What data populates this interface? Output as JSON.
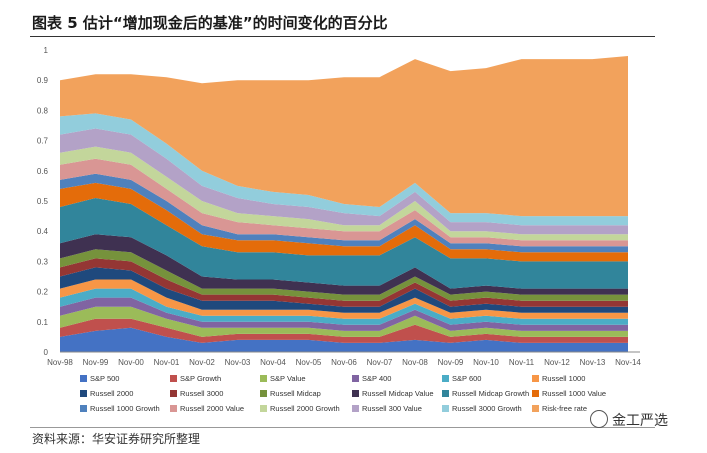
{
  "title": "图表 5 估计“增加现金后的基准”的时间变化的百分比",
  "source": "资料来源：华安证券研究所整理",
  "watermark": "金工严选",
  "chart_data": {
    "type": "area",
    "stacked": true,
    "xlabel": "",
    "ylabel": "",
    "ylim": [
      0,
      1
    ],
    "yticks": [
      "0",
      "0.1",
      "0.2",
      "0.3",
      "0.4",
      "0.5",
      "0.6",
      "0.7",
      "0.8",
      "0.9",
      "1"
    ],
    "x": [
      "Nov-98",
      "Nov-99",
      "Nov-00",
      "Nov-01",
      "Nov-02",
      "Nov-03",
      "Nov-04",
      "Nov-05",
      "Nov-06",
      "Nov-07",
      "Nov-08",
      "Nov-09",
      "Nov-10",
      "Nov-11",
      "Nov-12",
      "Nov-13",
      "Nov-14"
    ],
    "legend_position": "bottom",
    "series": [
      {
        "name": "S&P 500",
        "color": "#4472C4",
        "values": [
          0.05,
          0.07,
          0.08,
          0.05,
          0.03,
          0.04,
          0.04,
          0.04,
          0.03,
          0.03,
          0.04,
          0.03,
          0.04,
          0.03,
          0.03,
          0.03,
          0.03
        ]
      },
      {
        "name": "S&P Growth",
        "color": "#C0504D",
        "values": [
          0.03,
          0.04,
          0.03,
          0.03,
          0.02,
          0.02,
          0.02,
          0.02,
          0.02,
          0.02,
          0.05,
          0.02,
          0.02,
          0.02,
          0.02,
          0.02,
          0.02
        ]
      },
      {
        "name": "S&P Value",
        "color": "#9BBB59",
        "values": [
          0.04,
          0.04,
          0.04,
          0.03,
          0.03,
          0.02,
          0.02,
          0.02,
          0.02,
          0.02,
          0.03,
          0.02,
          0.02,
          0.02,
          0.02,
          0.02,
          0.02
        ]
      },
      {
        "name": "S&P 400",
        "color": "#8064A2",
        "values": [
          0.03,
          0.03,
          0.03,
          0.02,
          0.02,
          0.02,
          0.02,
          0.02,
          0.02,
          0.02,
          0.02,
          0.02,
          0.02,
          0.02,
          0.02,
          0.02,
          0.02
        ]
      },
      {
        "name": "S&P 600",
        "color": "#4BACC6",
        "values": [
          0.03,
          0.03,
          0.03,
          0.02,
          0.02,
          0.02,
          0.02,
          0.02,
          0.02,
          0.02,
          0.02,
          0.02,
          0.02,
          0.02,
          0.02,
          0.02,
          0.02
        ]
      },
      {
        "name": "Russell 1000",
        "color": "#F79646",
        "values": [
          0.03,
          0.03,
          0.03,
          0.03,
          0.02,
          0.02,
          0.02,
          0.02,
          0.02,
          0.02,
          0.02,
          0.02,
          0.02,
          0.02,
          0.02,
          0.02,
          0.02
        ]
      },
      {
        "name": "Russell 2000",
        "color": "#1F497D",
        "values": [
          0.04,
          0.04,
          0.03,
          0.03,
          0.03,
          0.03,
          0.03,
          0.02,
          0.02,
          0.02,
          0.03,
          0.02,
          0.02,
          0.02,
          0.02,
          0.02,
          0.02
        ]
      },
      {
        "name": "Russell 3000",
        "color": "#943634",
        "values": [
          0.03,
          0.03,
          0.03,
          0.03,
          0.02,
          0.02,
          0.02,
          0.02,
          0.02,
          0.02,
          0.02,
          0.02,
          0.02,
          0.02,
          0.02,
          0.02,
          0.02
        ]
      },
      {
        "name": "Russell Midcap",
        "color": "#76923C",
        "values": [
          0.03,
          0.03,
          0.03,
          0.03,
          0.02,
          0.02,
          0.02,
          0.02,
          0.02,
          0.02,
          0.02,
          0.02,
          0.02,
          0.02,
          0.02,
          0.02,
          0.02
        ]
      },
      {
        "name": "Russell Midcap Value",
        "color": "#3F3151",
        "values": [
          0.05,
          0.05,
          0.05,
          0.05,
          0.04,
          0.03,
          0.03,
          0.03,
          0.03,
          0.03,
          0.03,
          0.02,
          0.02,
          0.02,
          0.02,
          0.02,
          0.02
        ]
      },
      {
        "name": "Russell Midcap Growth",
        "color": "#31859B",
        "values": [
          0.12,
          0.12,
          0.11,
          0.1,
          0.1,
          0.09,
          0.09,
          0.09,
          0.1,
          0.1,
          0.1,
          0.1,
          0.09,
          0.09,
          0.09,
          0.09,
          0.09
        ]
      },
      {
        "name": "Russell 1000 Value",
        "color": "#E46C0A",
        "values": [
          0.06,
          0.05,
          0.05,
          0.05,
          0.04,
          0.04,
          0.04,
          0.04,
          0.03,
          0.03,
          0.04,
          0.03,
          0.03,
          0.03,
          0.03,
          0.03,
          0.03
        ]
      },
      {
        "name": "Russell 1000 Growth",
        "color": "#4F81BD",
        "values": [
          0.03,
          0.03,
          0.03,
          0.03,
          0.03,
          0.02,
          0.02,
          0.02,
          0.02,
          0.02,
          0.02,
          0.02,
          0.02,
          0.02,
          0.02,
          0.02,
          0.02
        ]
      },
      {
        "name": "Russell 2000 Value",
        "color": "#D99694",
        "values": [
          0.05,
          0.05,
          0.05,
          0.04,
          0.04,
          0.04,
          0.03,
          0.03,
          0.03,
          0.03,
          0.03,
          0.02,
          0.02,
          0.02,
          0.02,
          0.02,
          0.02
        ]
      },
      {
        "name": "Russell 2000 Growth",
        "color": "#C3D69B",
        "values": [
          0.04,
          0.04,
          0.04,
          0.04,
          0.04,
          0.03,
          0.03,
          0.03,
          0.02,
          0.02,
          0.03,
          0.02,
          0.02,
          0.02,
          0.02,
          0.02,
          0.02
        ]
      },
      {
        "name": "Russell 300 Value",
        "color": "#B3A2C7",
        "values": [
          0.06,
          0.06,
          0.06,
          0.06,
          0.05,
          0.05,
          0.04,
          0.04,
          0.04,
          0.03,
          0.03,
          0.03,
          0.03,
          0.03,
          0.03,
          0.03,
          0.03
        ]
      },
      {
        "name": "Russell 3000 Growth",
        "color": "#92CDDC",
        "values": [
          0.06,
          0.05,
          0.05,
          0.05,
          0.05,
          0.04,
          0.04,
          0.04,
          0.03,
          0.03,
          0.03,
          0.03,
          0.03,
          0.03,
          0.03,
          0.03,
          0.03
        ]
      },
      {
        "name": "Risk-free rate",
        "color": "#F2A25C",
        "values": [
          0.12,
          0.13,
          0.15,
          0.22,
          0.29,
          0.35,
          0.37,
          0.38,
          0.42,
          0.43,
          0.41,
          0.47,
          0.48,
          0.52,
          0.52,
          0.52,
          0.53
        ]
      }
    ]
  }
}
